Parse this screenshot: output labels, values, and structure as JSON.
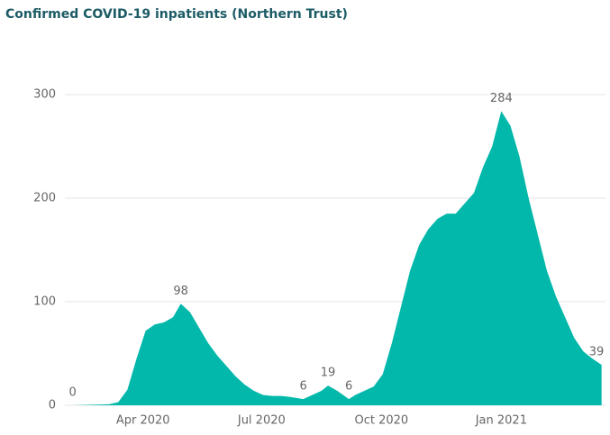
{
  "chart_data": {
    "type": "area",
    "title": "Confirmed COVID-19 inpatients (Northern Trust)",
    "x": [
      "2020-02-07",
      "2020-03-06",
      "2020-03-13",
      "2020-03-20",
      "2020-03-27",
      "2020-04-03",
      "2020-04-10",
      "2020-04-17",
      "2020-04-24",
      "2020-04-30",
      "2020-05-07",
      "2020-05-14",
      "2020-05-21",
      "2020-05-28",
      "2020-06-04",
      "2020-06-11",
      "2020-06-18",
      "2020-06-25",
      "2020-07-02",
      "2020-07-09",
      "2020-07-16",
      "2020-07-23",
      "2020-08-02",
      "2020-08-09",
      "2020-08-16",
      "2020-08-21",
      "2020-08-28",
      "2020-09-06",
      "2020-09-11",
      "2020-09-18",
      "2020-09-25",
      "2020-10-02",
      "2020-10-09",
      "2020-10-16",
      "2020-10-23",
      "2020-10-30",
      "2020-11-06",
      "2020-11-13",
      "2020-11-20",
      "2020-11-27",
      "2020-12-04",
      "2020-12-11",
      "2020-12-18",
      "2020-12-25",
      "2021-01-01",
      "2021-01-08",
      "2021-01-15",
      "2021-01-22",
      "2021-01-29",
      "2021-02-05",
      "2021-02-12",
      "2021-02-19",
      "2021-02-26",
      "2021-03-05",
      "2021-03-12",
      "2021-03-19"
    ],
    "values": [
      0,
      1,
      3,
      15,
      45,
      72,
      78,
      80,
      85,
      98,
      90,
      75,
      60,
      48,
      38,
      28,
      20,
      14,
      10,
      9,
      9,
      8,
      6,
      10,
      14,
      19,
      14,
      6,
      10,
      14,
      18,
      30,
      60,
      95,
      130,
      155,
      170,
      180,
      185,
      185,
      195,
      205,
      230,
      250,
      284,
      270,
      240,
      200,
      165,
      130,
      105,
      85,
      65,
      52,
      45,
      39
    ],
    "value_labels": [
      "0",
      null,
      null,
      null,
      null,
      null,
      null,
      null,
      null,
      "98",
      null,
      null,
      null,
      null,
      null,
      null,
      null,
      null,
      null,
      null,
      null,
      null,
      "6",
      null,
      null,
      "19",
      null,
      "6",
      null,
      null,
      null,
      null,
      null,
      null,
      null,
      null,
      null,
      null,
      null,
      null,
      null,
      null,
      null,
      null,
      "284",
      null,
      null,
      null,
      null,
      null,
      null,
      null,
      null,
      null,
      null,
      "39"
    ],
    "color": "#01b8aa",
    "xlim": [
      "2020-02-01",
      "2021-03-22"
    ],
    "xticks": [
      {
        "value": "2020-04-01",
        "label": "Apr 2020"
      },
      {
        "value": "2020-07-01",
        "label": "Jul 2020"
      },
      {
        "value": "2020-10-01",
        "label": "Oct 2020"
      },
      {
        "value": "2021-01-01",
        "label": "Jan 2021"
      }
    ],
    "ylim": [
      0,
      300
    ],
    "yticks": [
      0,
      100,
      200,
      300
    ],
    "grid": true
  }
}
